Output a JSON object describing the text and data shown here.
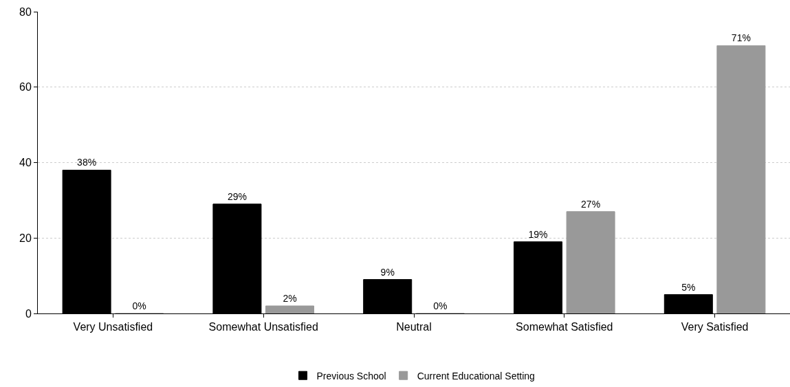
{
  "chart_data": {
    "type": "bar",
    "categories": [
      "Very Unsatisfied",
      "Somewhat Unsatisfied",
      "Neutral",
      "Somewhat Satisfied",
      "Very Satisfied"
    ],
    "series": [
      {
        "name": "Previous School",
        "color": "#000000",
        "values": [
          38,
          29,
          9,
          19,
          5
        ],
        "value_labels": [
          "38%",
          "29%",
          "9%",
          "19%",
          "5%"
        ]
      },
      {
        "name": "Current Educational Setting",
        "color": "#999999",
        "values": [
          0,
          2,
          0,
          27,
          71
        ],
        "value_labels": [
          "0%",
          "2%",
          "0%",
          "27%",
          "71%"
        ]
      }
    ],
    "ylim": [
      0,
      80
    ],
    "yticks": [
      0,
      20,
      40,
      60,
      80
    ],
    "grid": "y",
    "legend": "bottom"
  }
}
